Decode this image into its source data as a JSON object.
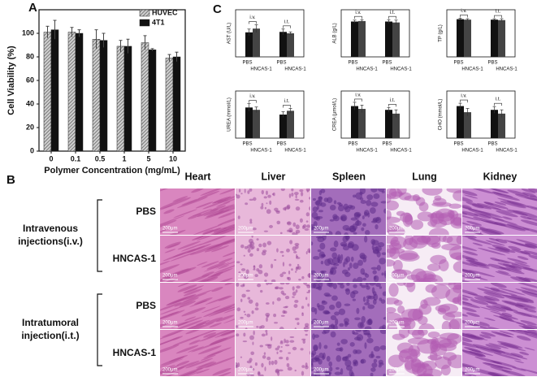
{
  "chart_data": [
    {
      "type": "bar",
      "label": "A",
      "xlabel": "Polymer Concentration (mg/mL)",
      "ylabel": "Cell Viability (%)",
      "categories": [
        "0",
        "0.1",
        "0.5",
        "1",
        "5",
        "10"
      ],
      "series": [
        {
          "name": "HUVEC",
          "color": "#8a8a8a",
          "hatch": true,
          "values": [
            101,
            101,
            95,
            89,
            92,
            79
          ],
          "errors": [
            5,
            4,
            8,
            5,
            6,
            3
          ]
        },
        {
          "name": "4T1",
          "color": "#111111",
          "hatch": false,
          "values": [
            103,
            100,
            94,
            89,
            86,
            80
          ],
          "errors": [
            8,
            3,
            6,
            6,
            1,
            4
          ]
        }
      ],
      "ylim": [
        0,
        120
      ],
      "yticks": [
        0,
        20,
        40,
        60,
        80,
        100
      ],
      "legend": "top-right"
    },
    {
      "type": "group-bar",
      "label": "C",
      "ylabel": "AST (U/L)",
      "categories": [
        "PBS",
        "HNCAS-1",
        "PBS",
        "HNCAS-1"
      ],
      "colors": [
        "#111111",
        "#444444",
        "#111111",
        "#444444"
      ],
      "values": [
        52,
        60,
        53,
        50
      ],
      "errors": [
        7,
        8,
        6,
        3
      ],
      "ylim": [
        0,
        100
      ],
      "annotations": [
        "i.v.",
        "i.t."
      ]
    },
    {
      "type": "group-bar",
      "ylabel": "ALB (g/L)",
      "categories": [
        "PBS",
        "HNCAS-1",
        "PBS",
        "HNCAS-1"
      ],
      "colors": [
        "#111111",
        "#444444",
        "#111111",
        "#444444"
      ],
      "values": [
        75,
        76,
        75,
        73
      ],
      "errors": [
        3,
        3,
        4,
        5
      ],
      "ylim": [
        0,
        100
      ],
      "annotations": [
        "i.v.",
        "i.t."
      ]
    },
    {
      "type": "group-bar",
      "ylabel": "TP (g/L)",
      "categories": [
        "PBS",
        "HNCAS-1",
        "PBS",
        "HNCAS-1"
      ],
      "colors": [
        "#111111",
        "#444444",
        "#111111",
        "#444444"
      ],
      "values": [
        80,
        79,
        79,
        78
      ],
      "errors": [
        2,
        2,
        2,
        3
      ],
      "ylim": [
        0,
        100
      ],
      "annotations": [
        "i.v.",
        "i.t."
      ]
    },
    {
      "type": "group-bar",
      "ylabel": "UREA (mmol/L)",
      "categories": [
        "PBS",
        "HNCAS-1",
        "PBS",
        "HNCAS-1"
      ],
      "colors": [
        "#111111",
        "#444444",
        "#111111",
        "#444444"
      ],
      "values": [
        65,
        60,
        50,
        58
      ],
      "errors": [
        8,
        6,
        6,
        5
      ],
      "ylim": [
        0,
        100
      ],
      "annotations": [
        "i.v.",
        "i.t."
      ]
    },
    {
      "type": "group-bar",
      "ylabel": "CREA (μmol/L)",
      "categories": [
        "PBS",
        "HNCAS-1",
        "PBS",
        "HNCAS-1"
      ],
      "colors": [
        "#111111",
        "#444444",
        "#111111",
        "#444444"
      ],
      "values": [
        68,
        62,
        60,
        52
      ],
      "errors": [
        8,
        8,
        5,
        8
      ],
      "ylim": [
        0,
        100
      ],
      "annotations": [
        "i.v.",
        "i.t."
      ]
    },
    {
      "type": "group-bar",
      "ylabel": "CHO (mmol/L)",
      "categories": [
        "PBS",
        "HNCAS-1",
        "PBS",
        "HNCAS-1"
      ],
      "colors": [
        "#111111",
        "#444444",
        "#111111",
        "#444444"
      ],
      "values": [
        68,
        55,
        60,
        52
      ],
      "errors": [
        6,
        8,
        7,
        8
      ],
      "ylim": [
        0,
        100
      ],
      "annotations": [
        "i.v.",
        "i.t."
      ]
    }
  ],
  "histology": {
    "label": "B",
    "columns": [
      "Heart",
      "Liver",
      "Spleen",
      "Lung",
      "Kidney"
    ],
    "groups": [
      {
        "lines": [
          "Intravenous",
          "injections(i.v.)"
        ],
        "rows": [
          "PBS",
          "HNCAS-1"
        ]
      },
      {
        "lines": [
          "Intratumoral",
          "injection(i.t.)"
        ],
        "rows": [
          "PBS",
          "HNCAS-1"
        ]
      }
    ],
    "scale_bar": "200μm"
  }
}
